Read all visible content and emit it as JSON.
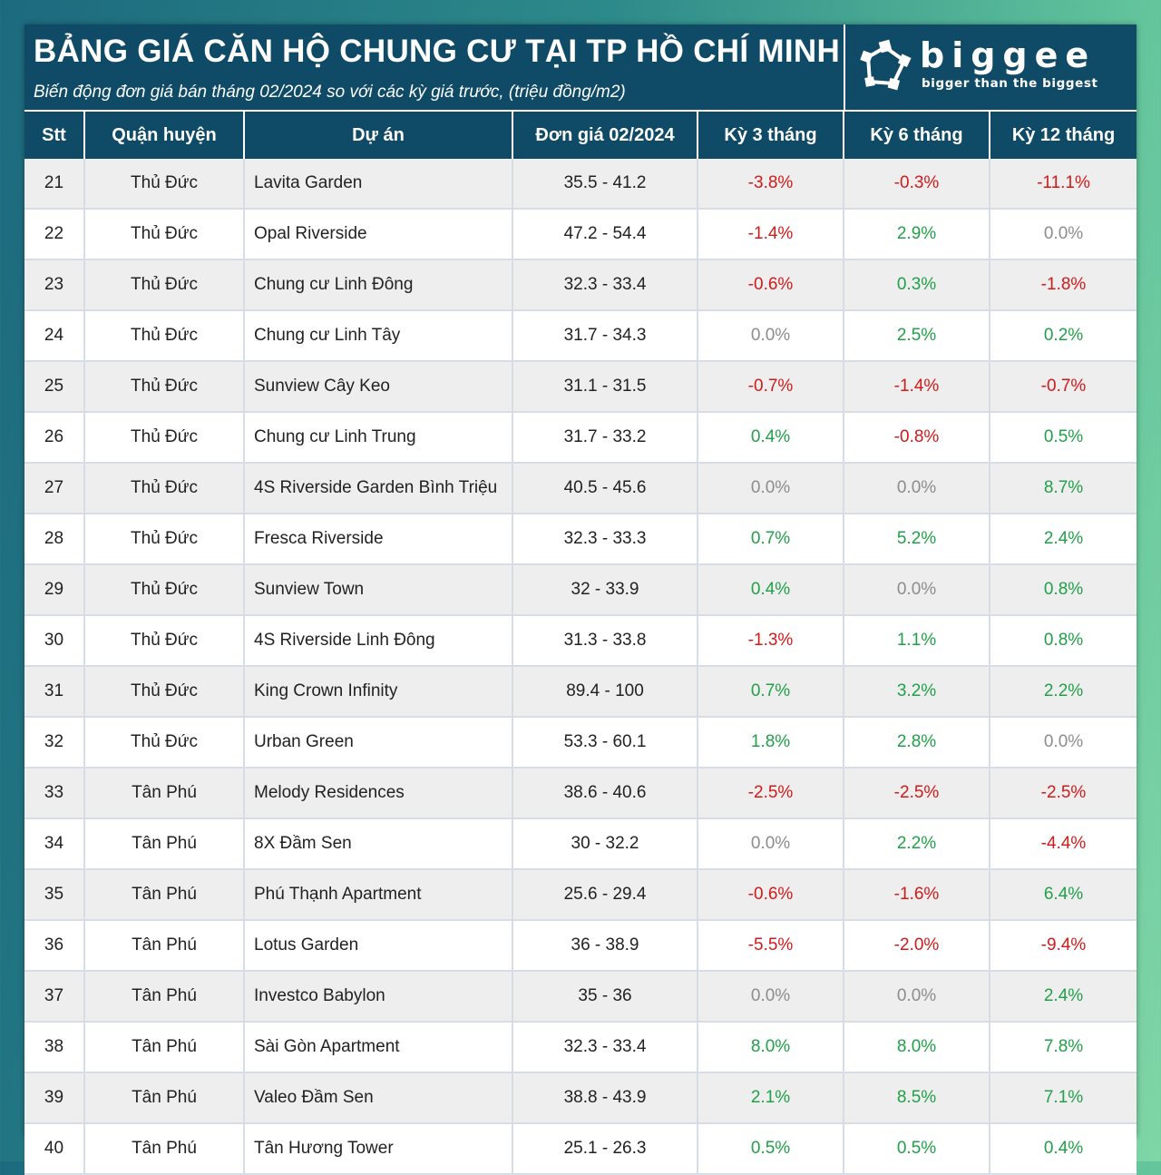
{
  "header": {
    "title": "BẢNG GIÁ CĂN HỘ CHUNG CƯ TẠI TP HỒ CHÍ MINH",
    "subtitle": "Biến động đơn giá bán tháng 02/2024 so với các kỳ giá trước, (triệu đồng/m2)"
  },
  "logo": {
    "name": "biggee",
    "tagline": "bigger than the biggest",
    "icon": "biggee-logo-icon"
  },
  "colors": {
    "header_bg": "#0f4a66",
    "negative": "#d11a1a",
    "positive": "#20a048",
    "zero": "#8c8c8c"
  },
  "table": {
    "columns": [
      "Stt",
      "Quận huyện",
      "Dự án",
      "Đơn giá 02/2024",
      "Kỳ 3 tháng",
      "Kỳ 6 tháng",
      "Kỳ 12 tháng"
    ],
    "rows": [
      [
        "21",
        "Thủ Đức",
        "Lavita Garden",
        "35.5 - 41.2",
        "-3.8%",
        "-0.3%",
        "-11.1%"
      ],
      [
        "22",
        "Thủ Đức",
        "Opal Riverside",
        "47.2 - 54.4",
        "-1.4%",
        "2.9%",
        "0.0%"
      ],
      [
        "23",
        "Thủ Đức",
        "Chung cư Linh Đông",
        "32.3 - 33.4",
        "-0.6%",
        "0.3%",
        "-1.8%"
      ],
      [
        "24",
        "Thủ Đức",
        "Chung cư Linh Tây",
        "31.7 - 34.3",
        "0.0%",
        "2.5%",
        "0.2%"
      ],
      [
        "25",
        "Thủ Đức",
        "Sunview Cây Keo",
        "31.1 - 31.5",
        "-0.7%",
        "-1.4%",
        "-0.7%"
      ],
      [
        "26",
        "Thủ Đức",
        "Chung cư Linh Trung",
        "31.7 - 33.2",
        "0.4%",
        "-0.8%",
        "0.5%"
      ],
      [
        "27",
        "Thủ Đức",
        "4S Riverside Garden Bình Triệu",
        "40.5 - 45.6",
        "0.0%",
        "0.0%",
        "8.7%"
      ],
      [
        "28",
        "Thủ Đức",
        "Fresca Riverside",
        "32.3 - 33.3",
        "0.7%",
        "5.2%",
        "2.4%"
      ],
      [
        "29",
        "Thủ Đức",
        "Sunview Town",
        "32 - 33.9",
        "0.4%",
        "0.0%",
        "0.8%"
      ],
      [
        "30",
        "Thủ Đức",
        "4S Riverside Linh Đông",
        "31.3 - 33.8",
        "-1.3%",
        "1.1%",
        "0.8%"
      ],
      [
        "31",
        "Thủ Đức",
        "King Crown Infinity",
        "89.4 - 100",
        "0.7%",
        "3.2%",
        "2.2%"
      ],
      [
        "32",
        "Thủ Đức",
        "Urban Green",
        "53.3 - 60.1",
        "1.8%",
        "2.8%",
        "0.0%"
      ],
      [
        "33",
        "Tân Phú",
        "Melody Residences",
        "38.6 - 40.6",
        "-2.5%",
        "-2.5%",
        "-2.5%"
      ],
      [
        "34",
        "Tân Phú",
        "8X Đầm Sen",
        "30 - 32.2",
        "0.0%",
        "2.2%",
        "-4.4%"
      ],
      [
        "35",
        "Tân Phú",
        "Phú Thạnh Apartment",
        "25.6 - 29.4",
        "-0.6%",
        "-1.6%",
        "6.4%"
      ],
      [
        "36",
        "Tân Phú",
        "Lotus Garden",
        "36 - 38.9",
        "-5.5%",
        "-2.0%",
        "-9.4%"
      ],
      [
        "37",
        "Tân Phú",
        "Investco Babylon",
        "35 - 36",
        "0.0%",
        "0.0%",
        "2.4%"
      ],
      [
        "38",
        "Tân Phú",
        "Sài Gòn Apartment",
        "32.3 - 33.4",
        "8.0%",
        "8.0%",
        "7.8%"
      ],
      [
        "39",
        "Tân Phú",
        "Valeo Đầm Sen",
        "38.8 - 43.9",
        "2.1%",
        "8.5%",
        "7.1%"
      ],
      [
        "40",
        "Tân Phú",
        "Tân Hương Tower",
        "25.1 - 26.3",
        "0.5%",
        "0.5%",
        "0.4%"
      ]
    ]
  }
}
